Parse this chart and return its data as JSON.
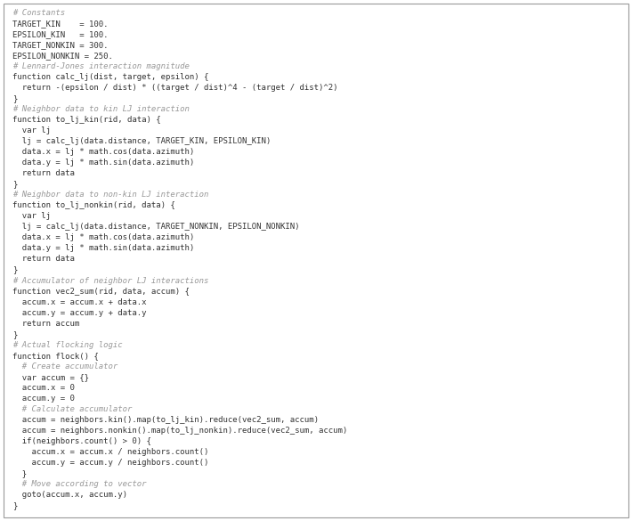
{
  "bg_color": "#ffffff",
  "border_color": "#999999",
  "comment_color": "#999999",
  "code_color": "#333333",
  "font_size": 6.5,
  "lines": [
    {
      "text": "# Constants",
      "type": "comment"
    },
    {
      "text": "TARGET_KIN    = 100.",
      "type": "code"
    },
    {
      "text": "EPSILON_KIN   = 100.",
      "type": "code"
    },
    {
      "text": "TARGET_NONKIN = 300.",
      "type": "code"
    },
    {
      "text": "EPSILON_NONKIN = 250.",
      "type": "code"
    },
    {
      "text": "# Lennard-Jones interaction magnitude",
      "type": "comment"
    },
    {
      "text": "function calc_lj(dist, target, epsilon) {",
      "type": "code"
    },
    {
      "text": "  return -(epsilon / dist) * ((target / dist)^4 - (target / dist)^2)",
      "type": "code"
    },
    {
      "text": "}",
      "type": "code"
    },
    {
      "text": "# Neighbor data to kin LJ interaction",
      "type": "comment"
    },
    {
      "text": "function to_lj_kin(rid, data) {",
      "type": "code"
    },
    {
      "text": "  var lj",
      "type": "code"
    },
    {
      "text": "  lj = calc_lj(data.distance, TARGET_KIN, EPSILON_KIN)",
      "type": "code"
    },
    {
      "text": "  data.x = lj * math.cos(data.azimuth)",
      "type": "code"
    },
    {
      "text": "  data.y = lj * math.sin(data.azimuth)",
      "type": "code"
    },
    {
      "text": "  return data",
      "type": "code"
    },
    {
      "text": "}",
      "type": "code"
    },
    {
      "text": "# Neighbor data to non-kin LJ interaction",
      "type": "comment"
    },
    {
      "text": "function to_lj_nonkin(rid, data) {",
      "type": "code"
    },
    {
      "text": "  var lj",
      "type": "code"
    },
    {
      "text": "  lj = calc_lj(data.distance, TARGET_NONKIN, EPSILON_NONKIN)",
      "type": "code"
    },
    {
      "text": "  data.x = lj * math.cos(data.azimuth)",
      "type": "code"
    },
    {
      "text": "  data.y = lj * math.sin(data.azimuth)",
      "type": "code"
    },
    {
      "text": "  return data",
      "type": "code"
    },
    {
      "text": "}",
      "type": "code"
    },
    {
      "text": "# Accumulator of neighbor LJ interactions",
      "type": "comment"
    },
    {
      "text": "function vec2_sum(rid, data, accum) {",
      "type": "code"
    },
    {
      "text": "  accum.x = accum.x + data.x",
      "type": "code"
    },
    {
      "text": "  accum.y = accum.y + data.y",
      "type": "code"
    },
    {
      "text": "  return accum",
      "type": "code"
    },
    {
      "text": "}",
      "type": "code"
    },
    {
      "text": "# Actual flocking logic",
      "type": "comment"
    },
    {
      "text": "function flock() {",
      "type": "code"
    },
    {
      "text": "  # Create accumulator",
      "type": "comment"
    },
    {
      "text": "  var accum = {}",
      "type": "code"
    },
    {
      "text": "  accum.x = 0",
      "type": "code"
    },
    {
      "text": "  accum.y = 0",
      "type": "code"
    },
    {
      "text": "  # Calculate accumulator",
      "type": "comment"
    },
    {
      "text": "  accum = neighbors.kin().map(to_lj_kin).reduce(vec2_sum, accum)",
      "type": "code"
    },
    {
      "text": "  accum = neighbors.nonkin().map(to_lj_nonkin).reduce(vec2_sum, accum)",
      "type": "code"
    },
    {
      "text": "  if(neighbors.count() > 0) {",
      "type": "code"
    },
    {
      "text": "    accum.x = accum.x / neighbors.count()",
      "type": "code"
    },
    {
      "text": "    accum.y = accum.y / neighbors.count()",
      "type": "code"
    },
    {
      "text": "  }",
      "type": "code"
    },
    {
      "text": "  # Move according to vector",
      "type": "comment"
    },
    {
      "text": "  goto(accum.x, accum.y)",
      "type": "code"
    },
    {
      "text": "}",
      "type": "code"
    }
  ]
}
